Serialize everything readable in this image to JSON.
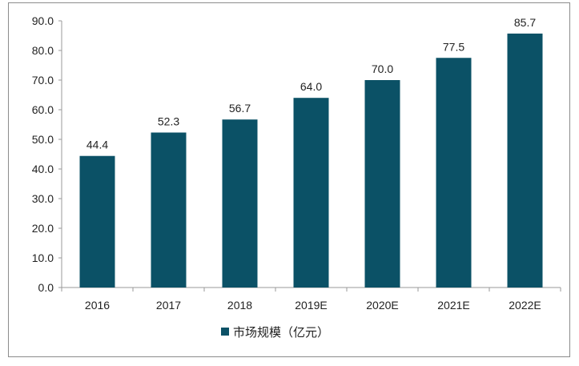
{
  "chart_data": {
    "type": "bar",
    "categories": [
      "2016",
      "2017",
      "2018",
      "2019E",
      "2020E",
      "2021E",
      "2022E"
    ],
    "series": [
      {
        "name": "市场规模（亿元）",
        "values": [
          44.4,
          52.3,
          56.7,
          64.0,
          70.0,
          77.5,
          85.7
        ]
      }
    ],
    "value_labels": [
      "44.4",
      "52.3",
      "56.7",
      "64.0",
      "70.0",
      "77.5",
      "85.7"
    ],
    "y_ticks": [
      "0.0",
      "10.0",
      "20.0",
      "30.0",
      "40.0",
      "50.0",
      "60.0",
      "70.0",
      "80.0",
      "90.0"
    ],
    "ylim": [
      0,
      90
    ],
    "title": "",
    "xlabel": "",
    "ylabel": "",
    "grid": false,
    "legend_position": "bottom",
    "color": "#0b5166"
  }
}
